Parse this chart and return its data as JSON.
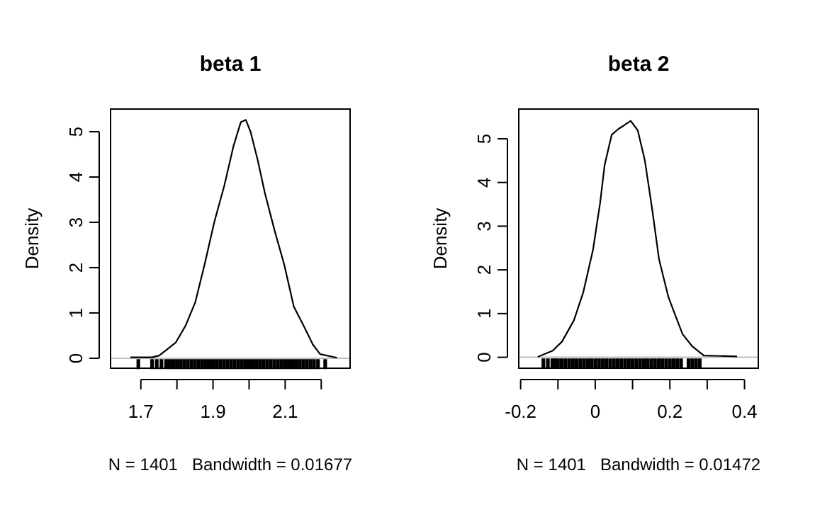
{
  "chart_data": [
    {
      "type": "line",
      "title": "beta 1",
      "xlabel": "N = 1401   Bandwidth = 0.01677",
      "ylabel": "Density",
      "xlim": [
        1.616,
        2.28
      ],
      "ylim": [
        -0.22,
        5.5
      ],
      "xticks": [
        1.7,
        {
          "value": 1.8,
          "label": null
        },
        1.9,
        {
          "value": 2.0,
          "label": null
        },
        2.1,
        {
          "value": 2.2,
          "label": null
        }
      ],
      "yticks": [
        0,
        1,
        2,
        3,
        4,
        5
      ],
      "grid": false,
      "ref_lines": [
        {
          "axis": "y",
          "value": 0,
          "color": "#bebebe"
        }
      ],
      "series": [
        {
          "color": "#000000",
          "x": [
            1.671,
            1.731,
            1.751,
            1.797,
            1.824,
            1.851,
            1.877,
            1.904,
            1.931,
            1.957,
            1.977,
            1.991,
            2.004,
            2.024,
            2.044,
            2.071,
            2.097,
            2.124,
            2.151,
            2.177,
            2.197,
            2.244
          ],
          "values": [
            0.02,
            0.02,
            0.06,
            0.35,
            0.72,
            1.24,
            2.08,
            3.02,
            3.8,
            4.69,
            5.21,
            5.26,
            5.0,
            4.37,
            3.64,
            2.81,
            2.08,
            1.14,
            0.72,
            0.3,
            0.09,
            0.01
          ]
        },
        {
          "type": "scatter",
          "color": "#000000",
          "x": [
            1.693,
            1.731,
            1.744,
            1.757,
            1.77,
            1.78,
            1.79,
            1.8,
            1.81,
            1.82,
            1.83,
            1.84,
            1.85,
            1.86,
            1.87,
            1.88,
            1.89,
            1.9,
            1.91,
            1.92,
            1.93,
            1.94,
            1.95,
            1.96,
            1.97,
            1.98,
            1.99,
            2.0,
            2.01,
            2.02,
            2.03,
            2.04,
            2.05,
            2.06,
            2.07,
            2.08,
            2.09,
            2.1,
            2.11,
            2.12,
            2.13,
            2.14,
            2.15,
            2.16,
            2.17,
            2.18,
            2.191,
            2.211
          ],
          "values": [
            -0.13,
            -0.13,
            -0.13,
            -0.13,
            -0.13,
            -0.13,
            -0.13,
            -0.13,
            -0.13,
            -0.13,
            -0.13,
            -0.13,
            -0.13,
            -0.13,
            -0.13,
            -0.13,
            -0.13,
            -0.13,
            -0.13,
            -0.13,
            -0.13,
            -0.13,
            -0.13,
            -0.13,
            -0.13,
            -0.13,
            -0.13,
            -0.13,
            -0.13,
            -0.13,
            -0.13,
            -0.13,
            -0.13,
            -0.13,
            -0.13,
            -0.13,
            -0.13,
            -0.13,
            -0.13,
            -0.13,
            -0.13,
            -0.13,
            -0.13,
            -0.13,
            -0.13,
            -0.13,
            -0.13,
            -0.13
          ]
        }
      ]
    },
    {
      "type": "line",
      "title": "beta 2",
      "xlabel": "N = 1401   Bandwidth = 0.01472",
      "ylabel": "Density",
      "xlim": [
        -0.205,
        0.437
      ],
      "ylim": [
        -0.25,
        5.68
      ],
      "xticks": [
        -0.2,
        {
          "value": -0.1,
          "label": null
        },
        0.0,
        {
          "value": 0.1,
          "label": null
        },
        0.2,
        {
          "value": 0.3,
          "label": null
        },
        0.4
      ],
      "yticks": [
        0,
        1,
        2,
        3,
        4,
        5
      ],
      "grid": false,
      "ref_lines": [
        {
          "axis": "y",
          "value": 0,
          "color": "#bebebe"
        }
      ],
      "series": [
        {
          "color": "#000000",
          "x": [
            -0.154,
            -0.114,
            -0.089,
            -0.057,
            -0.032,
            -0.006,
            0.013,
            0.025,
            0.044,
            0.063,
            0.076,
            0.095,
            0.114,
            0.133,
            0.152,
            0.171,
            0.196,
            0.215,
            0.234,
            0.259,
            0.291,
            0.38
          ],
          "values": [
            0.01,
            0.15,
            0.36,
            0.85,
            1.49,
            2.46,
            3.53,
            4.39,
            5.09,
            5.23,
            5.3,
            5.41,
            5.19,
            4.5,
            3.42,
            2.24,
            1.38,
            0.95,
            0.53,
            0.26,
            0.04,
            0.02
          ]
        },
        {
          "type": "scatter",
          "color": "#000000",
          "x": [
            -0.139,
            -0.127,
            -0.115,
            -0.108,
            -0.1,
            -0.09,
            -0.08,
            -0.07,
            -0.06,
            -0.05,
            -0.04,
            -0.03,
            -0.02,
            -0.01,
            0.0,
            0.01,
            0.02,
            0.03,
            0.04,
            0.05,
            0.06,
            0.07,
            0.08,
            0.09,
            0.1,
            0.11,
            0.12,
            0.13,
            0.14,
            0.15,
            0.16,
            0.17,
            0.18,
            0.19,
            0.2,
            0.21,
            0.22,
            0.23,
            0.25,
            0.26,
            0.27,
            0.28
          ],
          "values": [
            -0.14,
            -0.14,
            -0.14,
            -0.14,
            -0.14,
            -0.14,
            -0.14,
            -0.14,
            -0.14,
            -0.14,
            -0.14,
            -0.14,
            -0.14,
            -0.14,
            -0.14,
            -0.14,
            -0.14,
            -0.14,
            -0.14,
            -0.14,
            -0.14,
            -0.14,
            -0.14,
            -0.14,
            -0.14,
            -0.14,
            -0.14,
            -0.14,
            -0.14,
            -0.14,
            -0.14,
            -0.14,
            -0.14,
            -0.14,
            -0.14,
            -0.14,
            -0.14,
            -0.14,
            -0.14,
            -0.14,
            -0.14,
            -0.14
          ]
        }
      ]
    }
  ]
}
